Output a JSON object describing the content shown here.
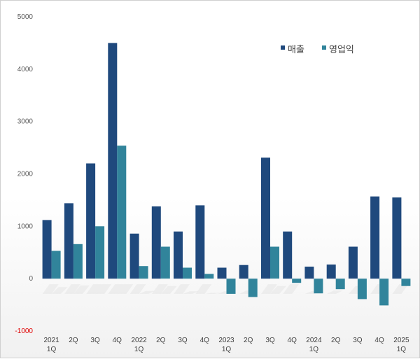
{
  "chart_data": {
    "type": "bar",
    "categories": [
      [
        "2021",
        "1Q"
      ],
      [
        "2Q"
      ],
      [
        "3Q"
      ],
      [
        "4Q"
      ],
      [
        "2022",
        "1Q"
      ],
      [
        "2Q"
      ],
      [
        "3Q"
      ],
      [
        "4Q"
      ],
      [
        "2023",
        "1Q"
      ],
      [
        "2Q"
      ],
      [
        "3Q"
      ],
      [
        "4Q"
      ],
      [
        "2024",
        "1Q"
      ],
      [
        "2Q"
      ],
      [
        "3Q"
      ],
      [
        "4Q"
      ],
      [
        "2025",
        "1Q"
      ]
    ],
    "series": [
      {
        "name": "매출",
        "color": "#1f497d",
        "values": [
          1120,
          1440,
          2200,
          4500,
          860,
          1380,
          900,
          1400,
          210,
          260,
          2310,
          900,
          230,
          270,
          610,
          1570,
          1550
        ]
      },
      {
        "name": "영업익",
        "color": "#31849b",
        "values": [
          530,
          660,
          1000,
          2540,
          240,
          610,
          210,
          90,
          -290,
          -350,
          610,
          -80,
          -280,
          -200,
          -390,
          -510,
          -140
        ]
      }
    ],
    "yticks": [
      5000,
      4000,
      3000,
      2000,
      1000,
      0,
      -1000
    ],
    "ytick_labels": [
      "5000",
      "4000",
      "3000",
      "2000",
      "1000",
      "0",
      "-1000"
    ],
    "ylim": [
      -1000,
      5000
    ],
    "negative_tick_color": "#e00000",
    "legend_position": "top-right",
    "grid": false
  }
}
